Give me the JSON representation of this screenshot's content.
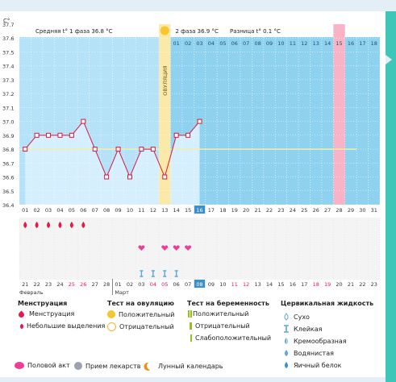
{
  "chart_data": {
    "type": "line",
    "unit_label": "C°",
    "y_ticks": [
      "37.7",
      "37.6",
      "37.5",
      "37.4",
      "37.3",
      "37.2",
      "37.1",
      "37.0",
      "36.9",
      "36.8",
      "36.7",
      "36.6",
      "36.5",
      "36.4"
    ],
    "ylim": [
      36.4,
      37.7
    ],
    "header": {
      "phase1": "Средняя t° 1 фаза 36.8 °C",
      "phase2": "2 фаза 36.9 °C",
      "diff": "Разница t° 0.1 °C"
    },
    "ovulation_label": "ОВУЛЯЦИЯ",
    "ovulation_day": 13,
    "cycle_days_after": [
      "01",
      "02",
      "03",
      "04",
      "05",
      "06",
      "07",
      "08",
      "09",
      "10",
      "11",
      "12",
      "13",
      "14",
      "15",
      "16",
      "17",
      "18"
    ],
    "highlight_after_day": 15,
    "days": [
      "01",
      "02",
      "03",
      "04",
      "05",
      "06",
      "07",
      "08",
      "09",
      "10",
      "11",
      "12",
      "13",
      "14",
      "15",
      "16",
      "17",
      "18",
      "19",
      "20",
      "21",
      "22",
      "23",
      "24",
      "25",
      "26",
      "27",
      "28",
      "29",
      "30",
      "31"
    ],
    "current_day": 16,
    "highlight_day": 28,
    "temperatures": [
      36.8,
      36.9,
      36.9,
      36.9,
      36.9,
      37.0,
      36.8,
      36.6,
      36.8,
      36.6,
      36.8,
      36.8,
      36.6,
      36.9,
      36.9,
      37.0
    ],
    "coverline": 36.8,
    "menstruation_days": [
      1,
      2,
      3,
      4,
      5,
      6
    ],
    "intercourse_days": [
      11,
      13,
      14,
      15
    ],
    "cervical_days": [
      11,
      12,
      13,
      14
    ],
    "moon_day": 22,
    "calendar_dates": [
      "21",
      "22",
      "23",
      "24",
      "25",
      "26",
      "27",
      "28",
      "01",
      "02",
      "03",
      "04",
      "05",
      "06",
      "07",
      "08",
      "09",
      "10",
      "11",
      "12",
      "13",
      "14",
      "15",
      "16",
      "17",
      "18",
      "19",
      "20",
      "21",
      "22",
      "23"
    ],
    "red_dates_index": [
      4,
      5,
      11,
      12,
      18,
      19,
      25,
      26
    ],
    "today_date_index": 15,
    "month_feb": "Февраль",
    "month_mar": "Март"
  },
  "legend": {
    "menstruation": {
      "title": "Менструация",
      "items": [
        "Менструация",
        "Небольшие выделения"
      ]
    },
    "ovulation_test": {
      "title": "Тест на овуляцию",
      "items": [
        "Положительный",
        "Отрицательный"
      ]
    },
    "pregnancy_test": {
      "title": "Тест на беременность",
      "items": [
        "Положительный",
        "Отрицательный",
        "Слабоположительный"
      ]
    },
    "cervical": {
      "title": "Цервикальная жидкость",
      "items": [
        "Сухо",
        "Клейкая",
        "Кремообразная",
        "Водянистая",
        "Яичный белок"
      ]
    },
    "bottom": [
      "Половой акт",
      "Прием лекарств",
      "Лунный календарь"
    ]
  },
  "colors": {
    "bg_blue": "#8ed2f0",
    "phase1_col": "#d6efff",
    "ovulation": "#fae9a9",
    "highlight": "#f8b4c6",
    "line": "#d9173f",
    "coverline": "#f1efaa",
    "accent": "#3ec7b8"
  }
}
